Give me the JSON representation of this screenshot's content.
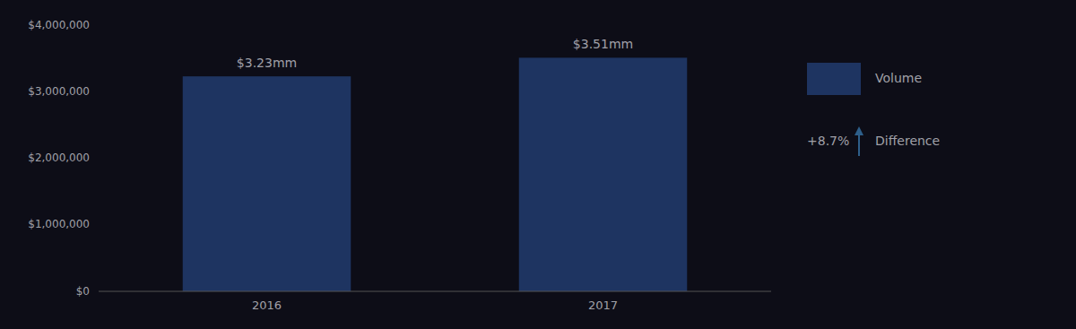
{
  "chart_data": {
    "type": "bar",
    "categories": [
      "2016",
      "2017"
    ],
    "series": [
      {
        "name": "Volume",
        "color": "#1e3461",
        "values": [
          3230000,
          3510000
        ],
        "value_labels": [
          "$3.23mm",
          "$3.51mm"
        ]
      }
    ],
    "data_labels": true,
    "ylim": [
      0,
      4000000
    ],
    "yticks": [
      {
        "value": 0,
        "label": "$0"
      },
      {
        "value": 1000000,
        "label": "$1,000,000"
      },
      {
        "value": 2000000,
        "label": "$2,000,000"
      },
      {
        "value": 3000000,
        "label": "$3,000,000"
      },
      {
        "value": 4000000,
        "label": "$4,000,000"
      }
    ],
    "grid": false,
    "legend": "right",
    "annotations": [
      {
        "text": "+8.7%",
        "label": "Difference",
        "color": "#2e5f8a"
      }
    ]
  }
}
